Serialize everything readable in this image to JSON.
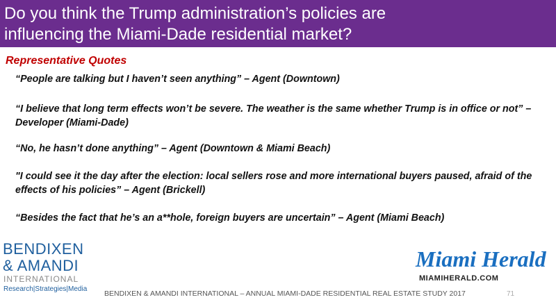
{
  "header": {
    "title": [
      "Do you think the Trump administration’s policies are",
      "influencing the Miami-Dade residential market?"
    ]
  },
  "section_title": "Representative Quotes",
  "quotes": [
    "“People are talking but I haven’t seen anything” – Agent (Downtown)",
    "“I believe that long term effects won’t be severe. The weather is the same whether Trump is in office or not” – Developer (Miami-Dade)",
    "“No, he hasn’t done anything” – Agent (Downtown & Miami Beach)",
    "\"I could see it the day after the election: local sellers rose and more international buyers paused, afraid of the effects of his policies” – Agent (Brickell)",
    "“Besides the fact that he’s an a**hole, foreign buyers are uncertain” – Agent (Miami Beach)"
  ],
  "footer": {
    "logo_left": [
      "BENDIXEN",
      "& AMANDI",
      "INTERNATIONAL",
      "Research|Strategies|Media"
    ],
    "logo_right": [
      "Miami Herald",
      "MIAMIHERALD.COM"
    ],
    "text": "BENDIXEN & AMANDI INTERNATIONAL – ANNUAL MIAMI-DADE RESIDENTIAL REAL ESTATE STUDY 2017",
    "page": "71"
  }
}
